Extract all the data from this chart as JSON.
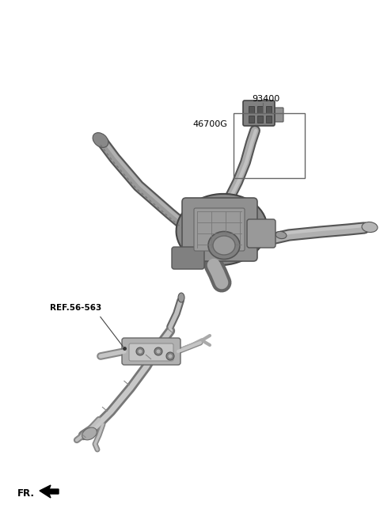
{
  "background_color": "#ffffff",
  "label_93400": "93400",
  "label_46700G": "46700G",
  "label_ref": "REF.56-563",
  "label_fr": "FR.",
  "fig_width": 4.8,
  "fig_height": 6.57,
  "dpi": 100,
  "text_color": "#000000",
  "font_size_labels": 8,
  "font_size_ref": 7.5,
  "font_size_fr": 8.5,
  "c_dark": "#555555",
  "c_mid": "#888888",
  "c_light": "#aaaaaa",
  "c_vlight": "#cccccc",
  "c_body": "#909090",
  "c_edge": "#444444"
}
